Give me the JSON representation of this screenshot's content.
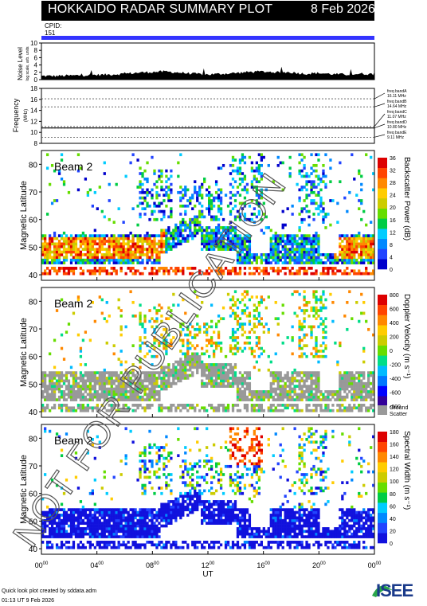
{
  "header": {
    "title": "HOKKAIDO RADAR SUMMARY PLOT",
    "date": "8 Feb 2026",
    "cpid_label": "CPID:",
    "cpid_value": "151"
  },
  "footer": {
    "line1": "Quick look plot created by sddata.adm",
    "line2": "01:13 UT  9 Feb 2026"
  },
  "logo_text": "ISEE",
  "watermark": "NOT FOR PUBLICATION",
  "colors": {
    "cpid_bar": "#3333ff",
    "ground_scatter": "#999999",
    "noise_fill": "#000000"
  },
  "chart_data": [
    {
      "type": "area",
      "panel": "noise",
      "ylabel": "Noise Level",
      "ylabel_sub": "log scale, arb. units",
      "ylim": [
        0,
        10
      ],
      "yticks": [
        "0",
        "2",
        "4",
        "6",
        "8",
        "10"
      ],
      "x_hours": [
        0,
        1,
        2,
        3,
        4,
        5,
        6,
        7,
        8,
        9,
        10,
        11,
        12,
        13,
        14,
        15,
        16,
        17,
        18,
        19,
        20,
        21,
        22,
        23,
        24
      ],
      "values": [
        1.0,
        1.0,
        1.1,
        1.2,
        1.3,
        1.4,
        1.6,
        1.9,
        2.1,
        2.2,
        1.9,
        1.6,
        1.4,
        1.6,
        1.8,
        2.1,
        2.2,
        2.0,
        2.0,
        1.6,
        1.8,
        1.5,
        1.4,
        1.6,
        1.5
      ]
    },
    {
      "type": "line",
      "panel": "frequency",
      "ylabel": "Frequency",
      "ylabel_sub": "(MHz)",
      "ylim": [
        8,
        18
      ],
      "yticks": [
        "8",
        "10",
        "12",
        "14",
        "16",
        "18"
      ],
      "bands": [
        {
          "label": "freq bandA",
          "mhz": "16.11 MHz",
          "value": 16.11
        },
        {
          "label": "freq bandB",
          "mhz": "14.64 MHz",
          "value": 14.64
        },
        {
          "label": "freq bandC",
          "mhz": "11.07 MHz",
          "value": 11.07
        },
        {
          "label": "freq bandD",
          "mhz": "10.80 MHz",
          "value": 10.8
        },
        {
          "label": "freq bandE",
          "mhz": "9.11 MHz",
          "value": 9.11
        }
      ],
      "solid_value": 10.8
    },
    {
      "type": "heatmap",
      "panel": "power",
      "beam_label": "Beam  2",
      "ylabel": "Magnetic Latitude",
      "ylim": [
        38,
        85
      ],
      "yticks": [
        "40",
        "50",
        "60",
        "70",
        "80"
      ],
      "colorbar_label": "Backscatter Power (dB)",
      "colorbar_ticks": [
        "0",
        "4",
        "8",
        "12",
        "16",
        "20",
        "24",
        "28",
        "32",
        "36"
      ],
      "colors": [
        "#0000cc",
        "#2244ff",
        "#0088ff",
        "#00ccff",
        "#00cc44",
        "#66dd00",
        "#cccc00",
        "#ffcc00",
        "#ff8800",
        "#ff4400",
        "#dd0000"
      ]
    },
    {
      "type": "heatmap",
      "panel": "velocity",
      "beam_label": "Beam  2",
      "ylabel": "Magnetic Latitude",
      "ylim": [
        38,
        85
      ],
      "yticks": [
        "40",
        "50",
        "60",
        "70",
        "80"
      ],
      "colorbar_label": "Doppler Velocity (m s⁻¹)",
      "colorbar_ticks": [
        "800",
        "600",
        "400",
        "200",
        "0",
        "-200",
        "-400",
        "-600",
        "-800"
      ],
      "colors": [
        "#330099",
        "#0000ff",
        "#0077ff",
        "#00bbff",
        "#00dd88",
        "#66dd00",
        "#cccc00",
        "#ffcc00",
        "#ff8800",
        "#ff4400",
        "#dd0000"
      ],
      "ground_scatter_label": "Ground",
      "ground_scatter_label2": "Scatter"
    },
    {
      "type": "heatmap",
      "panel": "width",
      "beam_label": "Beam  2",
      "ylabel": "Magnetic Latitude",
      "ylim": [
        38,
        85
      ],
      "yticks": [
        "40",
        "50",
        "60",
        "70",
        "80"
      ],
      "colorbar_label": "Spectral Width (m s⁻¹)",
      "colorbar_ticks": [
        "0",
        "20",
        "40",
        "60",
        "80",
        "100",
        "120",
        "140",
        "160",
        "180"
      ],
      "colors": [
        "#1111dd",
        "#2244ff",
        "#0088ff",
        "#00ccff",
        "#00cc44",
        "#66dd00",
        "#cccc00",
        "#ffcc00",
        "#ff8800",
        "#ff4400",
        "#dd0000"
      ],
      "xlabel": "UT",
      "xticks": [
        "00",
        "04",
        "08",
        "12",
        "16",
        "20",
        "00"
      ],
      "xticks_sup": "00",
      "xlim_hours": [
        0,
        24
      ]
    }
  ]
}
